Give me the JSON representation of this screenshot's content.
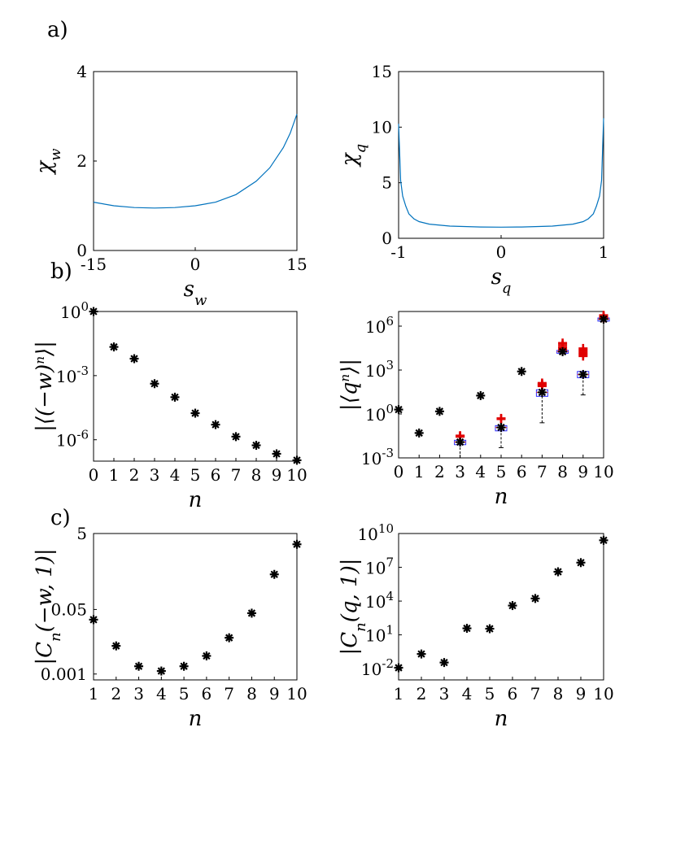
{
  "panel_labels": [
    "a)",
    "b)",
    "c)"
  ],
  "chart_data": [
    {
      "id": "a-left",
      "type": "line",
      "xlabel": "s_w",
      "ylabel": "χ_w",
      "xlim": [
        -15,
        15
      ],
      "ylim": [
        0,
        4
      ],
      "xticks": [
        "-15",
        "0",
        "15"
      ],
      "yticks": [
        "0",
        "2",
        "4"
      ],
      "series": [
        {
          "name": "chi_w",
          "color": "#0072BD",
          "x": [
            -15,
            -12,
            -9,
            -6,
            -3,
            0,
            3,
            6,
            9,
            11,
            13,
            14,
            15
          ],
          "y": [
            1.08,
            1.0,
            0.96,
            0.95,
            0.96,
            1.0,
            1.08,
            1.25,
            1.55,
            1.85,
            2.3,
            2.62,
            3.05
          ]
        }
      ]
    },
    {
      "id": "a-right",
      "type": "line",
      "xlabel": "s_q",
      "ylabel": "χ_q",
      "xlim": [
        -1,
        1
      ],
      "ylim": [
        0,
        15
      ],
      "xticks": [
        "-1",
        "0",
        "1"
      ],
      "yticks": [
        "0",
        "5",
        "10",
        "15"
      ],
      "series": [
        {
          "name": "chi_q",
          "color": "#0072BD",
          "x": [
            -1.0,
            -0.98,
            -0.96,
            -0.93,
            -0.9,
            -0.85,
            -0.8,
            -0.7,
            -0.5,
            -0.2,
            0,
            0.2,
            0.5,
            0.7,
            0.8,
            0.85,
            0.9,
            0.93,
            0.96,
            0.98,
            1.0
          ],
          "y": [
            10.3,
            5.2,
            3.8,
            2.9,
            2.2,
            1.75,
            1.5,
            1.27,
            1.1,
            1.02,
            1.0,
            1.02,
            1.1,
            1.27,
            1.5,
            1.75,
            2.2,
            2.9,
            3.8,
            5.2,
            10.8
          ]
        }
      ]
    },
    {
      "id": "b-left",
      "type": "scatter",
      "yscale": "log",
      "xlabel": "n",
      "ylabel": "|⟨(−w)ⁿ⟩|",
      "xlim": [
        0,
        10
      ],
      "ylim_log10": [
        -7,
        0
      ],
      "xticks": [
        "0",
        "1",
        "2",
        "3",
        "4",
        "5",
        "6",
        "7",
        "8",
        "9",
        "10"
      ],
      "ytick_values_log10": [
        0,
        -3,
        -6
      ],
      "ytick_exponents": [
        "0",
        "-3",
        "-6"
      ],
      "marker": "asterisk",
      "n": [
        0,
        1,
        2,
        3,
        4,
        5,
        6,
        7,
        8,
        9,
        10
      ],
      "values": [
        1,
        0.022,
        0.0062,
        0.00042,
        9.8e-05,
        1.75e-05,
        5.1e-06,
        1.4e-06,
        5.5e-07,
        2.2e-07,
        1.1e-07
      ]
    },
    {
      "id": "b-right",
      "type": "scatter",
      "yscale": "log",
      "xlabel": "n",
      "ylabel": "|⟨qⁿ⟩|",
      "xlim": [
        0,
        10
      ],
      "ylim_log10": [
        -3,
        7
      ],
      "xticks": [
        "0",
        "1",
        "2",
        "3",
        "4",
        "5",
        "6",
        "7",
        "8",
        "9",
        "10"
      ],
      "ytick_values_log10": [
        -3,
        0,
        3,
        6
      ],
      "ytick_exponents": [
        "-3",
        "0",
        "3",
        "6"
      ],
      "marker": "asterisk",
      "n": [
        0,
        1,
        2,
        3,
        4,
        5,
        6,
        7,
        8,
        9,
        10
      ],
      "values": [
        2,
        0.05,
        1.5,
        0.012,
        18,
        0.12,
        800,
        30,
        18000,
        500,
        3000000
      ],
      "red_plus": [
        {
          "n": 3,
          "values": [
            0.028,
            0.03,
            0.033
          ]
        },
        {
          "n": 5,
          "values": [
            0.45,
            0.5
          ]
        },
        {
          "n": 7,
          "values": [
            80,
            95,
            110,
            130
          ]
        },
        {
          "n": 8,
          "values": [
            25000,
            35000,
            50000,
            70000
          ]
        },
        {
          "n": 9,
          "values": [
            9000,
            12000,
            16000,
            22000,
            30000
          ]
        },
        {
          "n": 10,
          "values": [
            3500000,
            4500000,
            5500000
          ]
        }
      ],
      "boxes": [
        {
          "n": 3,
          "q1": 0.008,
          "median": 0.012,
          "q3": 0.016,
          "whisker_low": 0.001,
          "whisker_high": 0.016
        },
        {
          "n": 5,
          "q1": 0.07,
          "median": 0.12,
          "q3": 0.16,
          "whisker_low": 0.005,
          "whisker_high": 0.16
        },
        {
          "n": 7,
          "q1": 16,
          "median": 30,
          "q3": 45,
          "whisker_low": 0.25,
          "whisker_high": 45
        },
        {
          "n": 8,
          "q1": 14000,
          "median": 18000,
          "q3": 22000,
          "whisker_low": 14000,
          "whisker_high": 22000
        },
        {
          "n": 9,
          "q1": 300,
          "median": 500,
          "q3": 800,
          "whisker_low": 20,
          "whisker_high": 800
        },
        {
          "n": 10,
          "q1": 2200000,
          "median": 3000000,
          "q3": 3600000,
          "whisker_low": 2200000,
          "whisker_high": 3600000
        }
      ]
    },
    {
      "id": "c-left",
      "type": "scatter",
      "yscale": "log",
      "xlabel": "n",
      "ylabel": "|C_n(−w,1)|",
      "xlim": [
        1,
        10
      ],
      "ylim": [
        0.0007,
        5
      ],
      "xticks": [
        "1",
        "2",
        "3",
        "4",
        "5",
        "6",
        "7",
        "8",
        "9",
        "10"
      ],
      "yticks": [
        "0.001",
        "0.05",
        "5"
      ],
      "marker": "asterisk",
      "n": [
        1,
        2,
        3,
        4,
        5,
        6,
        7,
        8,
        9,
        10
      ],
      "values": [
        0.027,
        0.0055,
        0.0016,
        0.0012,
        0.0016,
        0.003,
        0.009,
        0.04,
        0.42,
        2.6
      ]
    },
    {
      "id": "c-right",
      "type": "scatter",
      "yscale": "log",
      "xlabel": "n",
      "ylabel": "|C_n(q,1)|",
      "xlim": [
        1,
        10
      ],
      "ylim_log10": [
        -3,
        10
      ],
      "xticks": [
        "1",
        "2",
        "3",
        "4",
        "5",
        "6",
        "7",
        "8",
        "9",
        "10"
      ],
      "ytick_values_log10": [
        -2,
        1,
        4,
        7,
        10
      ],
      "ytick_exponents": [
        "-2",
        "1",
        "4",
        "7",
        "10"
      ],
      "marker": "asterisk",
      "n": [
        1,
        2,
        3,
        4,
        5,
        6,
        7,
        8,
        9,
        10
      ],
      "values": [
        0.012,
        0.2,
        0.035,
        38,
        35,
        4000,
        17000,
        4000000,
        26000000,
        2500000000
      ]
    }
  ]
}
